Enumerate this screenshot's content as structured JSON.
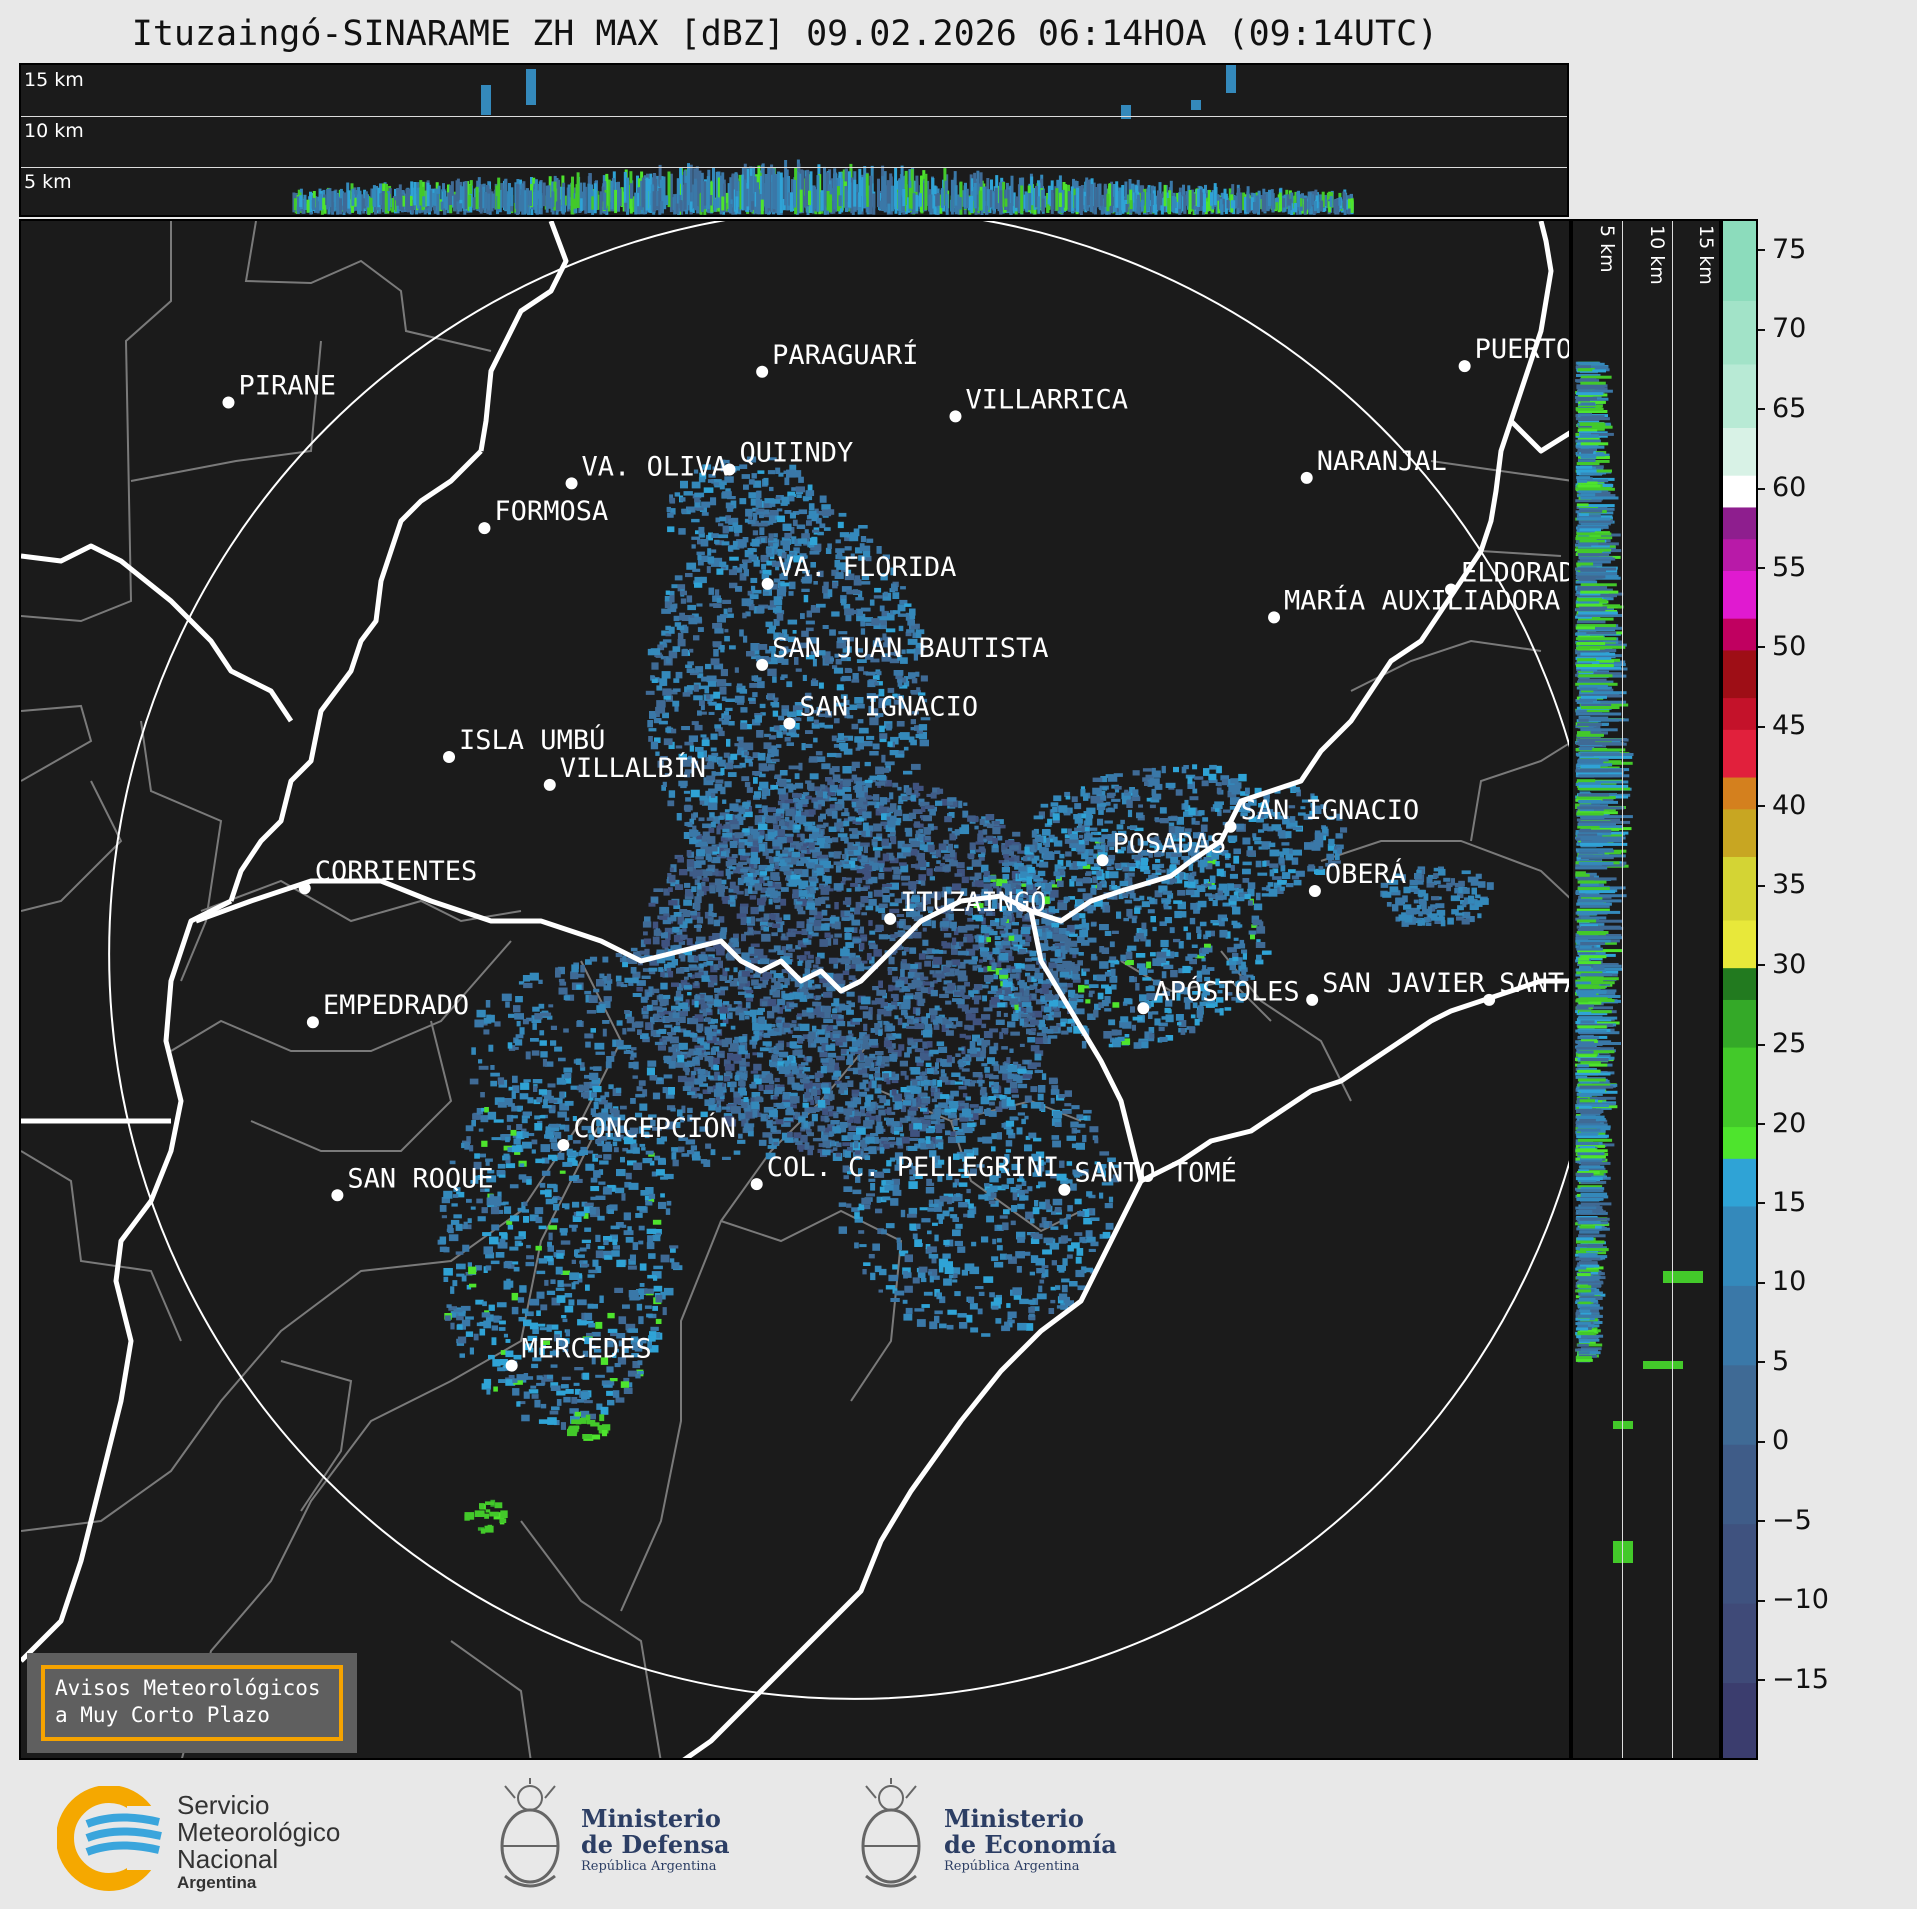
{
  "title": "Ituzaingó-SINARAME ZH MAX [dBZ] 09.02.2026 06:14HOA (09:14UTC)",
  "height_labels": [
    "15 km",
    "10 km",
    "5 km"
  ],
  "side_height_labels": [
    "5 km",
    "10 km",
    "15 km"
  ],
  "colorbar": {
    "ticks": [
      "75",
      "70",
      "65",
      "60",
      "55",
      "50",
      "45",
      "40",
      "35",
      "30",
      "25",
      "20",
      "15",
      "10",
      "5",
      "0",
      "−5",
      "−10",
      "−15"
    ],
    "bands": [
      {
        "min": -20,
        "color": "#3b3d6e"
      },
      {
        "min": -15,
        "color": "#3f4a78"
      },
      {
        "min": -10,
        "color": "#3f527f"
      },
      {
        "min": -5,
        "color": "#3f5c88"
      },
      {
        "min": 0,
        "color": "#3f6a95"
      },
      {
        "min": 5,
        "color": "#3a78a8"
      },
      {
        "min": 10,
        "color": "#3489bb"
      },
      {
        "min": 15,
        "color": "#2fa3d6"
      },
      {
        "min": 18,
        "color": "#4ee42d"
      },
      {
        "min": 20,
        "color": "#43c92a"
      },
      {
        "min": 25,
        "color": "#34a928"
      },
      {
        "min": 28,
        "color": "#227a1f"
      },
      {
        "min": 30,
        "color": "#e8e83a"
      },
      {
        "min": 33,
        "color": "#d4d434"
      },
      {
        "min": 37,
        "color": "#c8a622"
      },
      {
        "min": 40,
        "color": "#d4801e"
      },
      {
        "min": 42,
        "color": "#e1203c"
      },
      {
        "min": 45,
        "color": "#c4122a"
      },
      {
        "min": 47,
        "color": "#9e0e16"
      },
      {
        "min": 50,
        "color": "#c00060"
      },
      {
        "min": 52,
        "color": "#e01ad0"
      },
      {
        "min": 55,
        "color": "#b81aa8"
      },
      {
        "min": 57,
        "color": "#8e1e8e"
      },
      {
        "min": 59,
        "color": "#ffffff"
      },
      {
        "min": 61,
        "color": "#d8f2e6"
      },
      {
        "min": 64,
        "color": "#b8ead5"
      },
      {
        "min": 68,
        "color": "#a2e3c8"
      },
      {
        "min": 72,
        "color": "#8cdcbc"
      }
    ]
  },
  "cities": [
    {
      "name": "PIRANE",
      "lon": -59.11,
      "lat": -25.73
    },
    {
      "name": "PARAGUARÍ",
      "lon": -57.15,
      "lat": -25.62
    },
    {
      "name": "VILLARRICA",
      "lon": -56.44,
      "lat": -25.78
    },
    {
      "name": "VA. OLIVA",
      "lon": -57.85,
      "lat": -26.02
    },
    {
      "name": "QUIINDY",
      "lon": -57.27,
      "lat": -25.97
    },
    {
      "name": "NARANJAL",
      "lon": -55.15,
      "lat": -26.0
    },
    {
      "name": "FORMOSA",
      "lon": -58.17,
      "lat": -26.18
    },
    {
      "name": "VA. FLORIDA",
      "lon": -57.13,
      "lat": -26.38
    },
    {
      "name": "ELDORADO",
      "lon": -54.62,
      "lat": -26.4
    },
    {
      "name": "MARÍA AUXILIADORA",
      "lon": -55.27,
      "lat": -26.5
    },
    {
      "name": "SAN JUAN BAUTISTA",
      "lon": -57.15,
      "lat": -26.67
    },
    {
      "name": "SAN IGNACIO",
      "lon": -57.05,
      "lat": -26.88
    },
    {
      "name": "ISLA UMBÚ",
      "lon": -58.3,
      "lat": -27.0
    },
    {
      "name": "VILLALBÍN",
      "lon": -57.93,
      "lat": -27.1
    },
    {
      "name": "SAN IGNACIO",
      "lon": -55.43,
      "lat": -27.25
    },
    {
      "name": "POSADAS",
      "lon": -55.9,
      "lat": -27.37
    },
    {
      "name": "CORRIENTES",
      "lon": -58.83,
      "lat": -27.47
    },
    {
      "name": "ITUZAINGÓ",
      "lon": -56.68,
      "lat": -27.58
    },
    {
      "name": "OBERÁ",
      "lon": -55.12,
      "lat": -27.48
    },
    {
      "name": "APÓSTOLES",
      "lon": -55.75,
      "lat": -27.9
    },
    {
      "name": "SAN JAVIER",
      "lon": -55.13,
      "lat": -27.87
    },
    {
      "name": "SANTA ROSA",
      "lon": -54.48,
      "lat": -27.87
    },
    {
      "name": "EMPEDRADO",
      "lon": -58.8,
      "lat": -27.95
    },
    {
      "name": "CONCEPCIÓN",
      "lon": -57.88,
      "lat": -28.39
    },
    {
      "name": "COL. C. PELLEGRINI",
      "lon": -57.17,
      "lat": -28.53
    },
    {
      "name": "SANTO TOMÉ",
      "lon": -56.04,
      "lat": -28.55
    },
    {
      "name": "SAN ROQUE",
      "lon": -58.71,
      "lat": -28.57
    },
    {
      "name": "MERCEDES",
      "lon": -58.07,
      "lat": -29.18
    },
    {
      "name": "PUERTO IGUAZÚ",
      "lon": -54.57,
      "lat": -25.6
    }
  ],
  "warning": {
    "line1": "Avisos Meteorológicos",
    "line2": "a Muy Corto Plazo"
  },
  "footer": {
    "smn": [
      "Servicio",
      "Meteorológico",
      "Nacional",
      "Argentina"
    ],
    "defensa": [
      "Ministerio",
      "de Defensa",
      "República Argentina"
    ],
    "economia": [
      "Ministerio",
      "de Economía",
      "República Argentina"
    ]
  },
  "colors": {
    "background": "#1b1b1b",
    "border_line": "#ffffff",
    "division_line": "#7a7a7a",
    "city_dot": "#ffffff",
    "warning_frame": "#f5a300"
  }
}
